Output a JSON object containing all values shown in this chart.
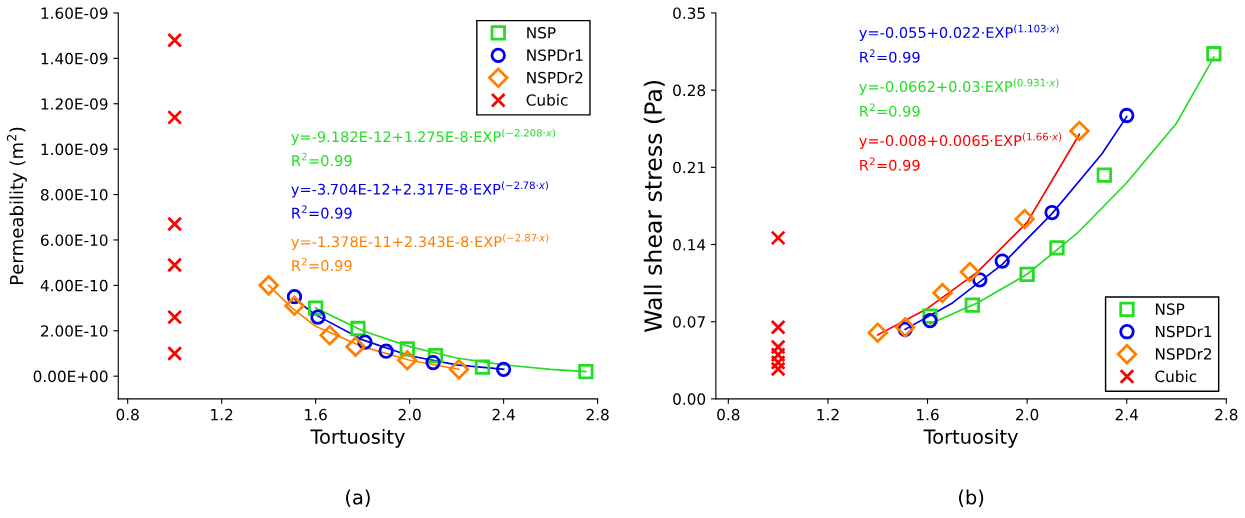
{
  "chart_data": [
    {
      "type": "scatter",
      "xlabel": "Tortuosity",
      "ylabel": "Permeability (m$^{2}$)",
      "xlim": [
        0.76,
        2.8
      ],
      "ylim": [
        -1e-10,
        1.6e-09
      ],
      "xticks": [
        {
          "value": 0.8,
          "label": "0.8"
        },
        {
          "value": 1.2,
          "label": "1.2"
        },
        {
          "value": 1.6,
          "label": "1.6"
        },
        {
          "value": 2.0,
          "label": "2.0"
        },
        {
          "value": 2.4,
          "label": "2.4"
        },
        {
          "value": 2.8,
          "label": "2.8"
        }
      ],
      "yticks": [
        {
          "value": 0,
          "label": "0.00E+00"
        },
        {
          "value": 2e-10,
          "label": "2.00E-10"
        },
        {
          "value": 4e-10,
          "label": "4.00E-10"
        },
        {
          "value": 6e-10,
          "label": "6.00E-10"
        },
        {
          "value": 8e-10,
          "label": "8.00E-10"
        },
        {
          "value": 1e-09,
          "label": "1.00E-09"
        },
        {
          "value": 1.2e-09,
          "label": "1.20E-09"
        },
        {
          "value": 1.4e-09,
          "label": "1.40E-09"
        },
        {
          "value": 1.6e-09,
          "label": "1.60E-09"
        }
      ],
      "legend": "top right",
      "grid": false,
      "series": [
        {
          "name": "NSP",
          "marker": "square",
          "color": "#22dd22",
          "x": [
            1.6,
            1.78,
            1.99,
            2.11,
            2.31,
            2.75
          ],
          "values": [
            3e-10,
            2.1e-10,
            1.2e-10,
            9e-11,
            4e-11,
            2e-11
          ]
        },
        {
          "name": "NSPDr1",
          "marker": "circle",
          "color": "#0000ee",
          "x": [
            1.51,
            1.61,
            1.81,
            1.9,
            2.1,
            2.4
          ],
          "values": [
            3.5e-10,
            2.6e-10,
            1.5e-10,
            1.1e-10,
            6e-11,
            3e-11
          ]
        },
        {
          "name": "NSPDr2",
          "marker": "diamond",
          "color": "#ff8000",
          "x": [
            1.4,
            1.51,
            1.66,
            1.77,
            1.99,
            2.21
          ],
          "values": [
            4e-10,
            3.1e-10,
            1.8e-10,
            1.3e-10,
            7e-11,
            3e-11
          ]
        },
        {
          "name": "Cubic",
          "marker": "cross",
          "color": "#ff0000",
          "x": [
            1.0,
            1.0,
            1.0,
            1.0,
            1.0,
            1.0
          ],
          "values": [
            1.48e-09,
            1.14e-09,
            6.7e-10,
            4.9e-10,
            2.6e-10,
            1e-10
          ]
        },
        {
          "type": "line",
          "marker": "none",
          "color": "#22dd22",
          "x": [
            1.6,
            1.8,
            2.0,
            2.2,
            2.4,
            2.6,
            2.75
          ],
          "values": [
            3e-10,
            2e-10,
            1.3e-10,
            8e-11,
            5e-11,
            3e-11,
            2e-11
          ]
        },
        {
          "type": "line",
          "marker": "none",
          "color": "#0000ee",
          "x": [
            1.51,
            1.6,
            1.8,
            2.0,
            2.2,
            2.4
          ],
          "values": [
            3.4e-10,
            2.7e-10,
            1.6e-10,
            9e-11,
            5e-11,
            3e-11
          ]
        },
        {
          "type": "line",
          "marker": "none",
          "color": "#ff8000",
          "x": [
            1.4,
            1.5,
            1.6,
            1.8,
            2.0,
            2.21
          ],
          "values": [
            4e-10,
            3e-10,
            2.2e-10,
            1.3e-10,
            7e-11,
            3e-11
          ]
        }
      ],
      "annotations": [
        "y=-9.182E-12+1.275E-8·EXP$^{(−2.208·x)}$",
        "R$^{2}$=0.99",
        "y=-3.704E-12+2.317E-8·EXP$^{(−2.78·x)}$",
        "R$^{2}$=0.99",
        "y=-1.378E-11+2.343E-8·EXP$^{(−2.87·x)}$",
        "R$^{2}$=0.99",
        "(a)"
      ]
    },
    {
      "type": "scatter",
      "xlabel": "Tortuosity",
      "ylabel": "Wall shear stress (Pa)",
      "xlim": [
        0.75,
        2.8
      ],
      "ylim": [
        0,
        0.35
      ],
      "xticks": [
        {
          "value": 0.8,
          "label": "0.8"
        },
        {
          "value": 1.2,
          "label": "1.2"
        },
        {
          "value": 1.6,
          "label": "1.6"
        },
        {
          "value": 2.0,
          "label": "2.0"
        },
        {
          "value": 2.4,
          "label": "2.4"
        },
        {
          "value": 2.8,
          "label": "2.8"
        }
      ],
      "yticks": [
        {
          "value": 0,
          "label": "0.00"
        },
        {
          "value": 0.07,
          "label": "0.07"
        },
        {
          "value": 0.14,
          "label": "0.14"
        },
        {
          "value": 0.21,
          "label": "0.21"
        },
        {
          "value": 0.28,
          "label": "0.28"
        },
        {
          "value": 0.35,
          "label": "0.35"
        }
      ],
      "legend": "bottom right",
      "grid": false,
      "series": [
        {
          "name": "NSP",
          "marker": "square",
          "color": "#22dd22",
          "x": [
            1.61,
            1.78,
            2.0,
            2.12,
            2.31,
            2.75
          ],
          "values": [
            0.075,
            0.085,
            0.113,
            0.137,
            0.203,
            0.313
          ]
        },
        {
          "name": "NSPDr1",
          "marker": "circle",
          "color": "#0000ee",
          "x": [
            1.51,
            1.61,
            1.81,
            1.9,
            2.1,
            2.4
          ],
          "values": [
            0.063,
            0.071,
            0.108,
            0.125,
            0.169,
            0.257
          ]
        },
        {
          "name": "NSPDr2",
          "marker": "diamond",
          "color": "#ff8000",
          "x": [
            1.4,
            1.51,
            1.66,
            1.77,
            1.99,
            2.21
          ],
          "values": [
            0.06,
            0.065,
            0.096,
            0.115,
            0.163,
            0.243
          ]
        },
        {
          "name": "Cubic",
          "marker": "cross",
          "color": "#ff0000",
          "x": [
            1.0,
            1.0,
            1.0,
            1.0,
            1.0,
            1.0
          ],
          "values": [
            0.146,
            0.065,
            0.047,
            0.04,
            0.033,
            0.027
          ]
        },
        {
          "type": "line",
          "marker": "none",
          "color": "#0000ee",
          "x": [
            1.51,
            1.7,
            1.9,
            2.1,
            2.3,
            2.4
          ],
          "values": [
            0.063,
            0.087,
            0.122,
            0.168,
            0.222,
            0.256
          ]
        },
        {
          "type": "line",
          "marker": "none",
          "color": "#22dd22",
          "x": [
            1.61,
            1.8,
            2.0,
            2.2,
            2.4,
            2.6,
            2.75
          ],
          "values": [
            0.068,
            0.087,
            0.113,
            0.15,
            0.196,
            0.25,
            0.31
          ]
        },
        {
          "type": "line",
          "marker": "none",
          "color": "#ff0000",
          "x": [
            1.4,
            1.6,
            1.8,
            2.0,
            2.21
          ],
          "values": [
            0.058,
            0.082,
            0.115,
            0.16,
            0.24
          ]
        }
      ],
      "annotations": [
        "y=-0.055+0.022·EXP$^{(1.103·x)}$",
        "R$^{2}$=0.99",
        "y=-0.0662+0.03·EXP$^{(0.931·x)}$",
        "R$^{2}$=0.99",
        "y=-0.008+0.0065·EXP$^{(1.66·x)}$",
        "R$^{2}$=0.99",
        "(b)"
      ]
    }
  ]
}
